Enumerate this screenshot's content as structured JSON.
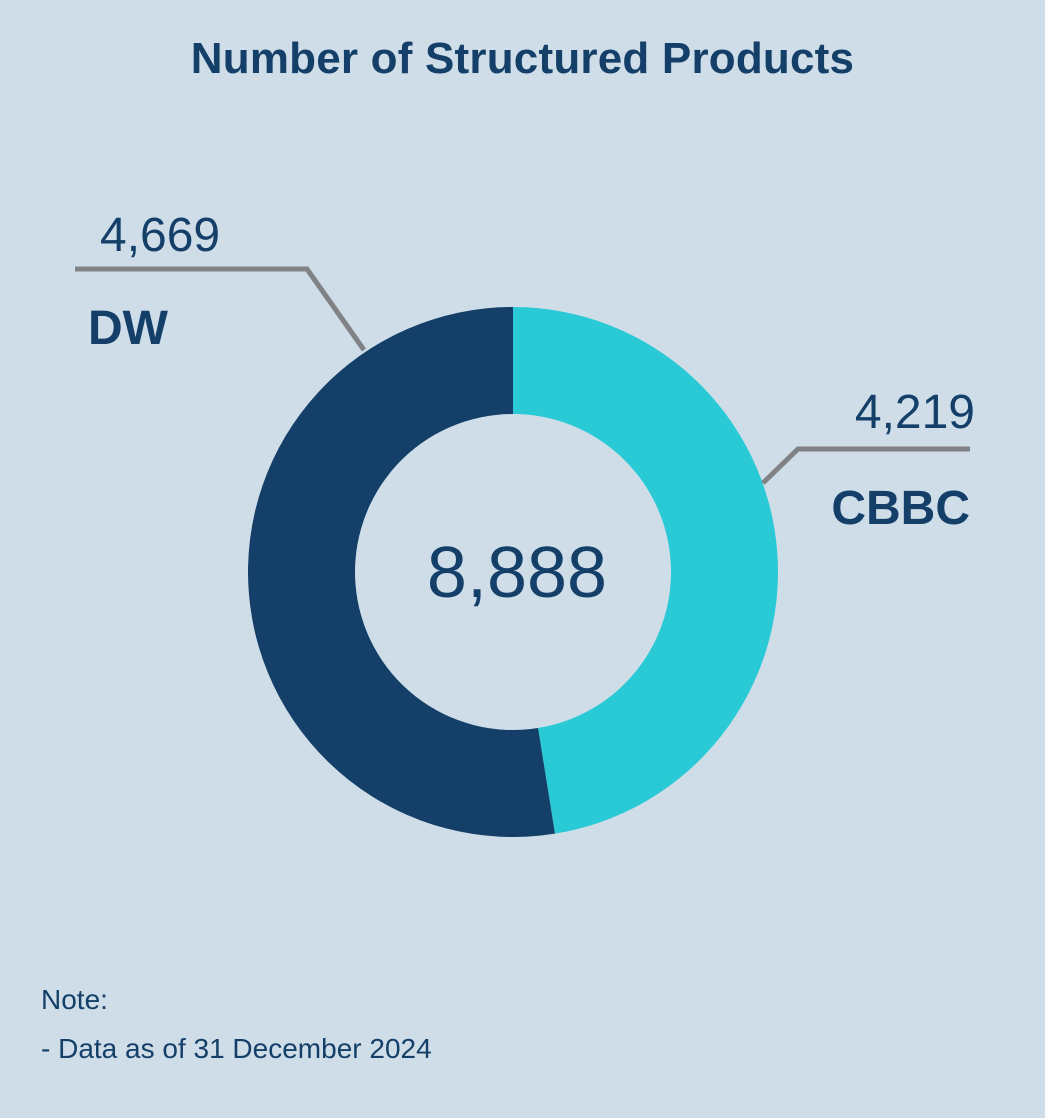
{
  "page": {
    "title": "Number of Structured Products",
    "note_label": "Note:",
    "note_text": "- Data as of 31 December 2024"
  },
  "colors": {
    "background": "#cfdde8",
    "text": "#143f68",
    "leader_line": "#808285"
  },
  "chart_data": {
    "type": "pie",
    "variant": "donut",
    "title": "Number of Structured Products",
    "center_label": "8,888",
    "total": 8888,
    "slices": [
      {
        "label": "CBBC",
        "value": 4219,
        "value_label": "4,219",
        "color": "#29cad5",
        "label_side": "right"
      },
      {
        "label": "DW",
        "value": 4669,
        "value_label": "4,669",
        "color": "#143f68",
        "label_side": "left"
      }
    ],
    "start_angle": "top",
    "direction": "clockwise"
  }
}
